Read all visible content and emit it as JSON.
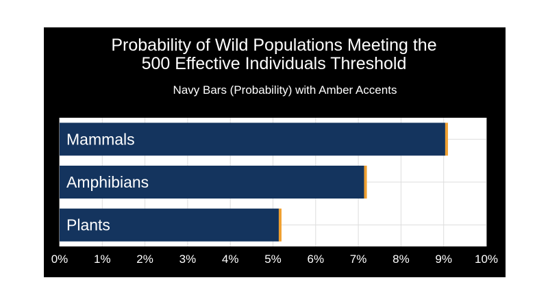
{
  "chart_data": {
    "type": "bar",
    "orientation": "horizontal",
    "title_lines": [
      "Probability of Wild Populations Meeting the",
      "500 Effective Individuals Threshold"
    ],
    "subtitle": "Navy Bars (Probability) with Amber Accents",
    "categories": [
      "Mammals",
      "Amphibians",
      "Plants"
    ],
    "values": [
      9.1,
      7.2,
      5.2
    ],
    "xlim": [
      0,
      10
    ],
    "ticks": [
      0,
      1,
      2,
      3,
      4,
      5,
      6,
      7,
      8,
      9,
      10
    ],
    "tick_labels": [
      "0%",
      "1%",
      "2%",
      "3%",
      "4%",
      "5%",
      "6%",
      "7%",
      "8%",
      "9%",
      "10%"
    ],
    "grid": true,
    "colors": {
      "bar": "#14345e",
      "accent": "#f0a030",
      "plot_background": "#ffffff",
      "grid": "#dddddd",
      "panel": "#000000",
      "text": "#ffffff"
    }
  }
}
